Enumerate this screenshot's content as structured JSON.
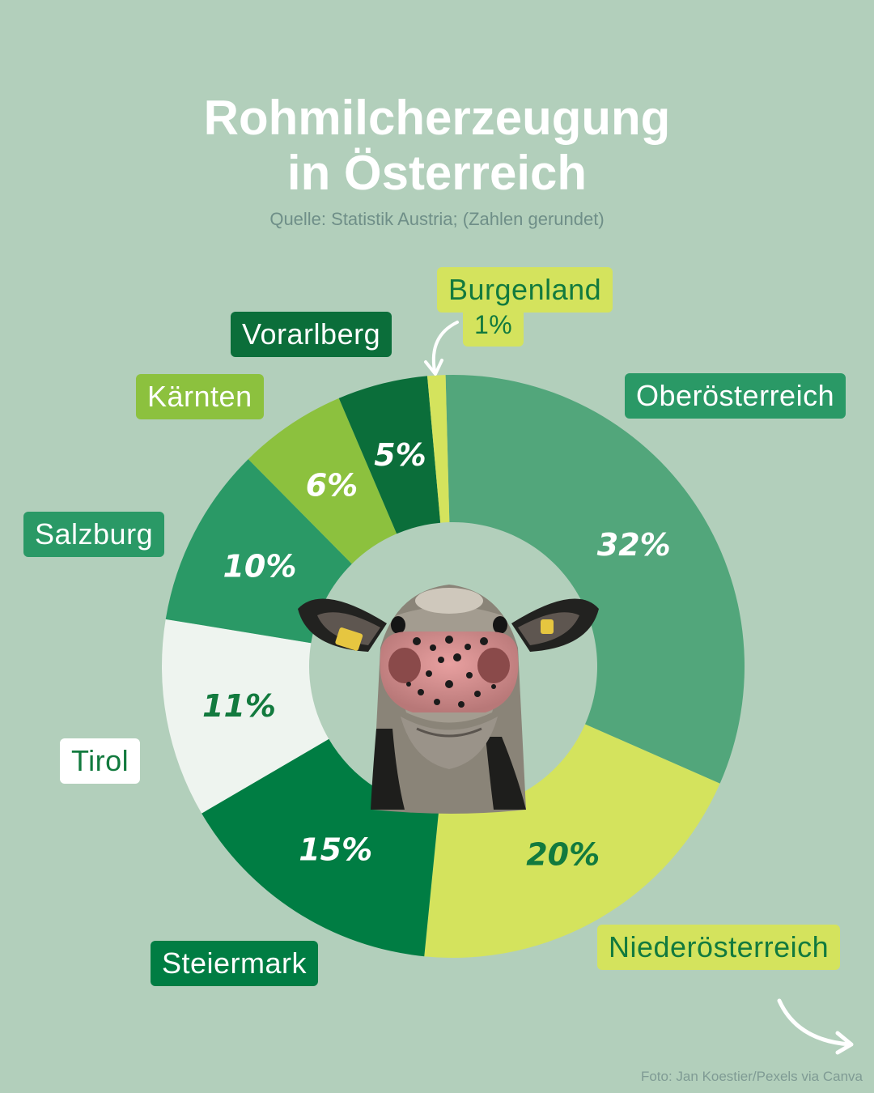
{
  "title_line1": "Rohmilcherzeugung",
  "title_line2": "in Österreich",
  "subtitle": "Quelle: Statistik Austria; (Zahlen gerundet)",
  "credit": "Foto: Jan Koestier/Pexels via Canva",
  "center_image": "cow-face-photo",
  "chart_data": {
    "type": "pie",
    "style": "donut",
    "unit": "%",
    "slices": [
      {
        "label": "Oberösterreich",
        "value": 32,
        "value_label": "32%",
        "color": "#52a67b",
        "text_color": "#ffffff"
      },
      {
        "label": "Niederösterreich",
        "value": 20,
        "value_label": "20%",
        "color": "#d4e35d",
        "text_color": "#127a3e"
      },
      {
        "label": "Steiermark",
        "value": 15,
        "value_label": "15%",
        "color": "#007d43",
        "text_color": "#ffffff"
      },
      {
        "label": "Tirol",
        "value": 11,
        "value_label": "11%",
        "color": "#eef4ef",
        "text_color": "#127a3e"
      },
      {
        "label": "Salzburg",
        "value": 10,
        "value_label": "10%",
        "color": "#2a9966",
        "text_color": "#ffffff"
      },
      {
        "label": "Kärnten",
        "value": 6,
        "value_label": "6%",
        "color": "#8cc13e",
        "text_color": "#ffffff"
      },
      {
        "label": "Vorarlberg",
        "value": 5,
        "value_label": "5%",
        "color": "#0b6e3a",
        "text_color": "#ffffff"
      },
      {
        "label": "Burgenland",
        "value": 1,
        "value_label": "1%",
        "color": "#d4e35d",
        "text_color": "#127a3e"
      }
    ]
  }
}
